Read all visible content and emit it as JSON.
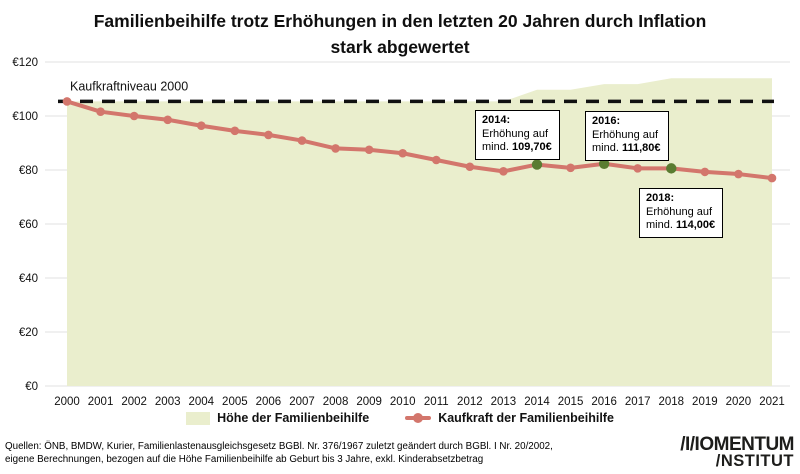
{
  "title": {
    "line1": "Familienbeihilfe trotz Erhöhungen in den letzten 20 Jahren durch Inflation",
    "line2": "stark abgewertet"
  },
  "chart_data": {
    "type": "area",
    "x": [
      2000,
      2001,
      2002,
      2003,
      2004,
      2005,
      2006,
      2007,
      2008,
      2009,
      2010,
      2011,
      2012,
      2013,
      2014,
      2015,
      2016,
      2017,
      2018,
      2019,
      2020,
      2021
    ],
    "series": [
      {
        "name": "Höhe der Familienbeihilfe",
        "type": "area",
        "values": [
          105.4,
          105.4,
          105.4,
          105.4,
          105.4,
          105.4,
          105.4,
          105.4,
          105.4,
          105.4,
          105.4,
          105.4,
          105.4,
          105.4,
          109.7,
          109.7,
          111.8,
          111.8,
          114.0,
          114.0,
          114.0,
          114.0
        ]
      },
      {
        "name": "Kaufkraft der Familienbeihilfe",
        "type": "line",
        "values": [
          105.4,
          101.6,
          100.0,
          98.6,
          96.4,
          94.5,
          93.0,
          90.9,
          88.0,
          87.5,
          86.2,
          83.7,
          81.2,
          79.5,
          82.0,
          80.8,
          82.3,
          80.6,
          80.6,
          79.3,
          78.5,
          77.0
        ]
      }
    ],
    "reference_line": {
      "label": "Kaufkraftniveau 2000",
      "value": 105.4
    },
    "highlight_points": {
      "series": "Kaufkraft der Familienbeihilfe",
      "years": [
        2014,
        2016,
        2018
      ]
    },
    "ylim": [
      0,
      120
    ],
    "yticks": [
      0,
      20,
      40,
      60,
      80,
      100,
      120
    ],
    "ytick_labels": [
      "€0",
      "€20",
      "€40",
      "€60",
      "€80",
      "€100",
      "€120"
    ],
    "grid": "horizontal",
    "legend_position": "bottom"
  },
  "annotations": [
    {
      "year": "2014:",
      "line": "Erhöhung auf",
      "prefix": "mind. ",
      "amount": "109,70€"
    },
    {
      "year": "2016:",
      "line": "Erhöhung auf",
      "prefix": "mind. ",
      "amount": "111,80€"
    },
    {
      "year": "2018:",
      "line": "Erhöhung auf",
      "prefix": "mind. ",
      "amount": "114,00€"
    }
  ],
  "legend": {
    "area_label": "Höhe der Familienbeihilfe",
    "line_label": "Kaufkraft der Familienbeihilfe"
  },
  "footer": {
    "line1": "Quellen: ÖNB, BMDW, Kurier, Familienlastenausgleichsgesetz BGBl. Nr. 376/1967 zuletzt geändert durch BGBl. I Nr. 20/2002,",
    "line2": "eigene Berechnungen, bezogen auf die Höhe Familienbeihilfe ab Geburt bis 3 Jahre, exkl. Kinderabsetzbetrag"
  },
  "logo": {
    "line1": "/I/IOMENTUM",
    "line2": "/NSTITUT"
  },
  "colors": {
    "area": "#eaeecd",
    "line": "#d3766c",
    "highlight_dot": "#5a7c31",
    "reference": "#111111",
    "grid": "#e2e2e2",
    "text": "#111111",
    "background": "#ffffff"
  }
}
